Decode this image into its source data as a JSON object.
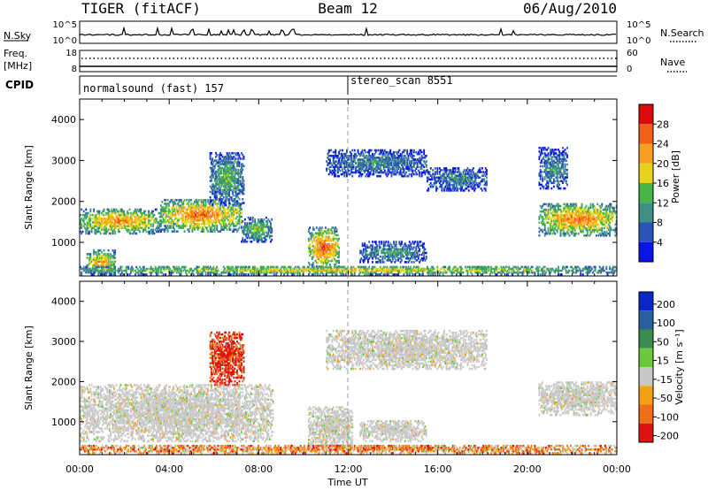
{
  "header": {
    "radar": "TIGER (fitACF)",
    "beam": "Beam 12",
    "date": "06/Aug/2010"
  },
  "noise_panel": {
    "left_label": "N.Sky",
    "right_label": "N.Search",
    "left_ticks": [
      "10^5",
      "10^0"
    ],
    "right_ticks": [
      "10^5",
      "10^0"
    ]
  },
  "freq_panel": {
    "left_label_line1": "Freq.",
    "left_label_line2": "[MHz]",
    "right_label": "Nave",
    "left_ticks": [
      "18",
      "8"
    ],
    "right_ticks": [
      "60",
      "0"
    ]
  },
  "cpid_panel": {
    "label": "CPID",
    "programs": [
      {
        "name": "normalsound (fast) 157",
        "start_hour": 0
      },
      {
        "name": "stereo_scan 8551",
        "start_hour": 12
      }
    ]
  },
  "chart_data": [
    {
      "type": "heatmap",
      "panel": "power",
      "ylabel": "Slant Range [km]",
      "yticks": [
        1000,
        2000,
        3000,
        4000
      ],
      "ylim": [
        180,
        4500
      ],
      "xlim_hours": [
        0,
        24
      ],
      "colorbar": {
        "label": "Power [dB]",
        "ticks": [
          "4",
          "8",
          "12",
          "16",
          "20",
          "24",
          "28"
        ],
        "range": [
          0,
          32
        ],
        "colors": [
          "#0a14e6",
          "#2a55b4",
          "#3f8f86",
          "#47b447",
          "#e8d21c",
          "#f5a020",
          "#f06018",
          "#dc0a0a"
        ]
      },
      "regions": [
        {
          "t": [
            0.0,
            3.6
          ],
          "r": [
            1200,
            1800
          ],
          "level": 22
        },
        {
          "t": [
            3.6,
            7.2
          ],
          "r": [
            1250,
            2050
          ],
          "level": 24
        },
        {
          "t": [
            5.8,
            7.3
          ],
          "r": [
            1900,
            3200
          ],
          "level": 13
        },
        {
          "t": [
            7.2,
            8.6
          ],
          "r": [
            1000,
            1600
          ],
          "level": 14
        },
        {
          "t": [
            0.3,
            1.6
          ],
          "r": [
            200,
            800
          ],
          "level": 21
        },
        {
          "t": [
            10.2,
            11.6
          ],
          "r": [
            350,
            1350
          ],
          "level": 25
        },
        {
          "t": [
            11.0,
            15.5
          ],
          "r": [
            2600,
            3250
          ],
          "level": 9
        },
        {
          "t": [
            15.5,
            18.2
          ],
          "r": [
            2250,
            2800
          ],
          "level": 9
        },
        {
          "t": [
            12.5,
            15.5
          ],
          "r": [
            500,
            1000
          ],
          "level": 11
        },
        {
          "t": [
            20.5,
            24.0
          ],
          "r": [
            1150,
            1950
          ],
          "level": 23
        },
        {
          "t": [
            20.5,
            21.8
          ],
          "r": [
            2300,
            3300
          ],
          "level": 10
        },
        {
          "t": [
            0.0,
            24.0
          ],
          "r": [
            200,
            420
          ],
          "level": 18
        }
      ]
    },
    {
      "type": "heatmap",
      "panel": "velocity",
      "ylabel": "Slant Range [km]",
      "yticks": [
        1000,
        2000,
        3000,
        4000
      ],
      "ylim": [
        180,
        4500
      ],
      "xlim_hours": [
        0,
        24
      ],
      "colorbar": {
        "label": "Velocity [m s⁻¹]",
        "ticks": [
          "200",
          "100",
          "50",
          "15",
          "-15",
          "-50",
          "-100",
          "-200"
        ],
        "colors": [
          "#0a28c8",
          "#2a60a0",
          "#3c8c50",
          "#6ac83c",
          "#c8c8c8",
          "#f5a018",
          "#ef7018",
          "#dc1414"
        ]
      },
      "regions": [
        {
          "t": [
            0.0,
            8.6
          ],
          "r": [
            500,
            1900
          ],
          "v": 0
        },
        {
          "t": [
            10.2,
            12.2
          ],
          "r": [
            350,
            1350
          ],
          "v": 0
        },
        {
          "t": [
            11.0,
            18.2
          ],
          "r": [
            2300,
            3250
          ],
          "v": 0
        },
        {
          "t": [
            12.5,
            15.5
          ],
          "r": [
            500,
            1000
          ],
          "v": 0
        },
        {
          "t": [
            20.5,
            24.0
          ],
          "r": [
            1150,
            2000
          ],
          "v": 0
        },
        {
          "t": [
            5.8,
            7.3
          ],
          "r": [
            1900,
            3250
          ],
          "v": -120
        },
        {
          "t": [
            0.0,
            24.0
          ],
          "r": [
            200,
            420
          ],
          "v": -50
        }
      ]
    }
  ],
  "xaxis": {
    "label": "Time UT",
    "ticks": [
      "00:00",
      "04:00",
      "08:00",
      "12:00",
      "16:00",
      "20:00",
      "00:00"
    ]
  }
}
